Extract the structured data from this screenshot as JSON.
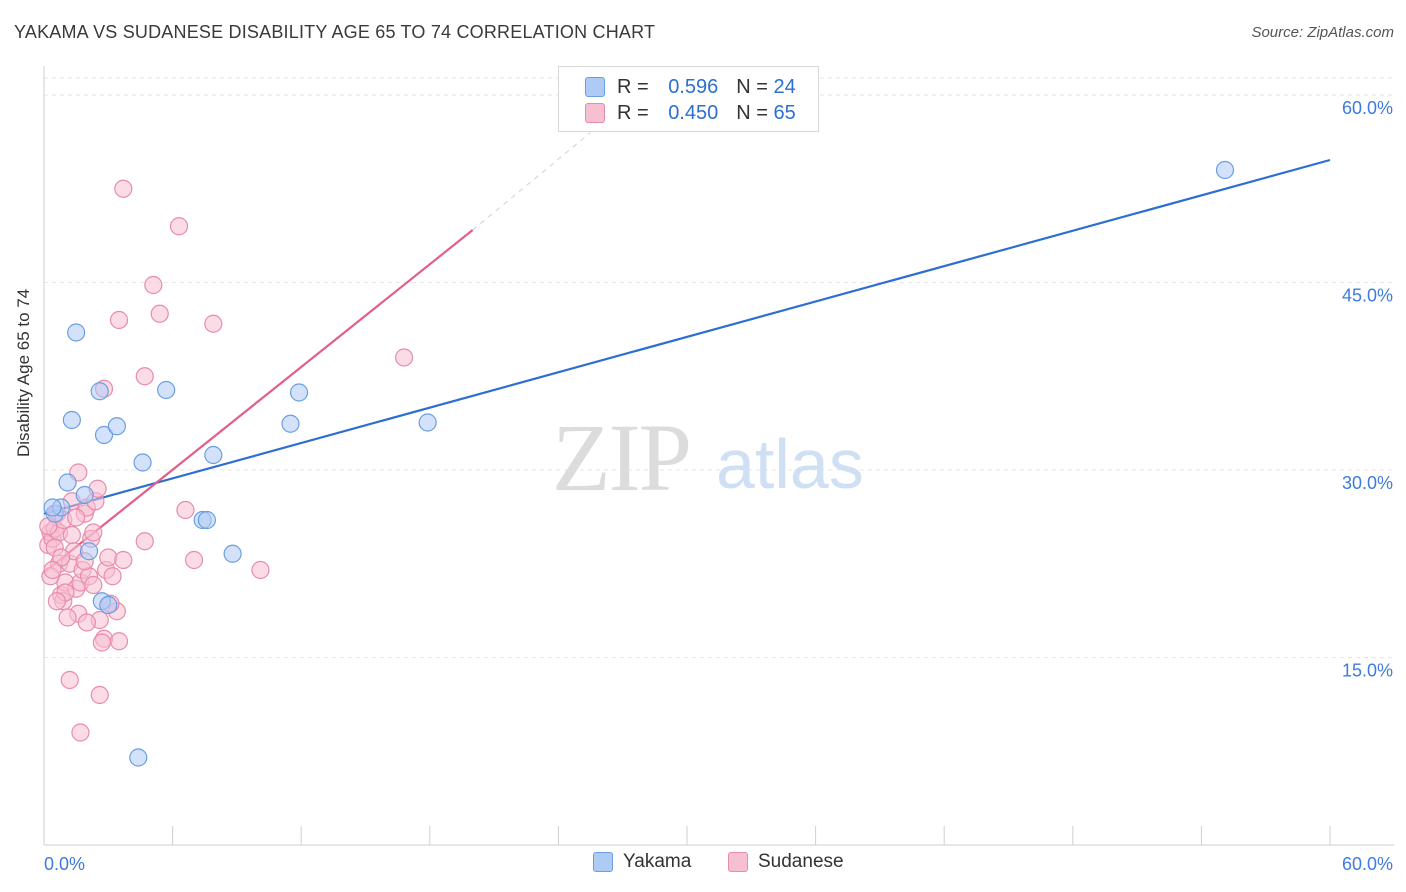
{
  "title": "YAKAMA VS SUDANESE DISABILITY AGE 65 TO 74 CORRELATION CHART",
  "source": "Source: ZipAtlas.com",
  "watermark": {
    "zip": "ZIP",
    "atlas": "atlas"
  },
  "legend": {
    "rows": [
      {
        "r_label": "R =",
        "r_value": "0.596",
        "n_label": "N =",
        "n_value": "24"
      },
      {
        "r_label": "R =",
        "r_value": "0.450",
        "n_label": "N =",
        "n_value": "65"
      }
    ]
  },
  "bottom_legend": [
    "Yakama",
    "Sudanese"
  ],
  "colors": {
    "yakama_fill": "#aecbf5",
    "yakama_stroke": "#6a9ee0",
    "yakama_line": "#2c6fd1",
    "sudanese_fill": "#f7bfd2",
    "sudanese_stroke": "#e88aab",
    "sudanese_line": "#e0608a",
    "tick_label": "#3d7be0"
  },
  "chart_data": {
    "type": "scatter",
    "title": "YAKAMA VS SUDANESE DISABILITY AGE 65 TO 74 CORRELATION CHART",
    "xlabel": "",
    "ylabel": "Disability Age 65 to 74",
    "xlim": [
      0,
      60
    ],
    "ylim": [
      0,
      62
    ],
    "x_tick_labels": [
      "0.0%",
      "60.0%"
    ],
    "y_ticks": [
      15,
      30,
      45,
      60
    ],
    "y_tick_labels": [
      "15.0%",
      "30.0%",
      "45.0%",
      "60.0%"
    ],
    "grid": true,
    "legend_placement": "top-center",
    "series": [
      {
        "name": "Yakama",
        "points": [
          [
            0.5,
            26.5
          ],
          [
            0.8,
            27.0
          ],
          [
            1.1,
            29.0
          ],
          [
            1.3,
            34.0
          ],
          [
            1.5,
            41.0
          ],
          [
            1.9,
            28.0
          ],
          [
            2.1,
            23.5
          ],
          [
            2.6,
            36.3
          ],
          [
            2.8,
            32.8
          ],
          [
            3.4,
            33.5
          ],
          [
            2.7,
            19.5
          ],
          [
            3.0,
            19.2
          ],
          [
            4.6,
            30.6
          ],
          [
            5.7,
            36.4
          ],
          [
            7.4,
            26.0
          ],
          [
            7.6,
            26.0
          ],
          [
            7.9,
            31.2
          ],
          [
            8.8,
            23.3
          ],
          [
            11.5,
            33.7
          ],
          [
            11.9,
            36.2
          ],
          [
            17.9,
            33.8
          ],
          [
            55.1,
            54.0
          ],
          [
            4.4,
            7.0
          ],
          [
            0.4,
            27.0
          ]
        ],
        "trend": {
          "x": [
            0.0,
            60.0
          ],
          "y": [
            26.5,
            54.8
          ]
        }
      },
      {
        "name": "Sudanese",
        "points": [
          [
            0.2,
            24.0
          ],
          [
            0.3,
            25.0
          ],
          [
            0.4,
            24.5
          ],
          [
            0.5,
            25.3
          ],
          [
            0.6,
            26.5
          ],
          [
            0.7,
            25.0
          ],
          [
            0.7,
            22.5
          ],
          [
            0.8,
            20.0
          ],
          [
            0.9,
            19.5
          ],
          [
            1.0,
            21.0
          ],
          [
            1.2,
            22.5
          ],
          [
            1.3,
            27.5
          ],
          [
            1.4,
            23.5
          ],
          [
            1.5,
            20.5
          ],
          [
            1.6,
            18.5
          ],
          [
            1.7,
            21.0
          ],
          [
            1.8,
            22.0
          ],
          [
            1.9,
            26.5
          ],
          [
            2.0,
            27.0
          ],
          [
            2.1,
            21.5
          ],
          [
            2.2,
            24.5
          ],
          [
            2.3,
            25.0
          ],
          [
            2.4,
            27.5
          ],
          [
            2.5,
            28.5
          ],
          [
            2.6,
            18.0
          ],
          [
            2.8,
            16.5
          ],
          [
            2.9,
            22.0
          ],
          [
            3.0,
            23.0
          ],
          [
            3.2,
            21.5
          ],
          [
            3.4,
            18.7
          ],
          [
            3.5,
            16.3
          ],
          [
            3.7,
            22.8
          ],
          [
            1.2,
            13.2
          ],
          [
            2.6,
            12.0
          ],
          [
            1.7,
            9.0
          ],
          [
            3.5,
            42.0
          ],
          [
            3.7,
            52.5
          ],
          [
            4.7,
            37.5
          ],
          [
            5.1,
            44.8
          ],
          [
            5.4,
            42.5
          ],
          [
            6.3,
            49.5
          ],
          [
            6.6,
            26.8
          ],
          [
            7.0,
            22.8
          ],
          [
            7.9,
            41.7
          ],
          [
            10.1,
            22.0
          ],
          [
            4.7,
            24.3
          ],
          [
            16.8,
            39.0
          ],
          [
            2.8,
            36.5
          ],
          [
            1.6,
            29.8
          ],
          [
            0.9,
            26.0
          ],
          [
            0.5,
            23.8
          ],
          [
            1.0,
            20.2
          ],
          [
            0.6,
            19.5
          ],
          [
            1.1,
            18.2
          ],
          [
            2.0,
            17.8
          ],
          [
            0.3,
            21.5
          ],
          [
            1.5,
            26.2
          ],
          [
            0.8,
            23.0
          ],
          [
            2.3,
            20.8
          ],
          [
            1.9,
            22.7
          ],
          [
            3.1,
            19.3
          ],
          [
            0.4,
            22.0
          ],
          [
            1.3,
            24.8
          ],
          [
            2.7,
            16.2
          ],
          [
            0.2,
            25.5
          ]
        ],
        "trend": {
          "x": [
            0.0,
            20.0
          ],
          "y": [
            21.8,
            49.2
          ]
        },
        "trend_extension": {
          "x": [
            20.0,
            25.5
          ],
          "y": [
            49.2,
            57.0
          ]
        }
      }
    ]
  }
}
